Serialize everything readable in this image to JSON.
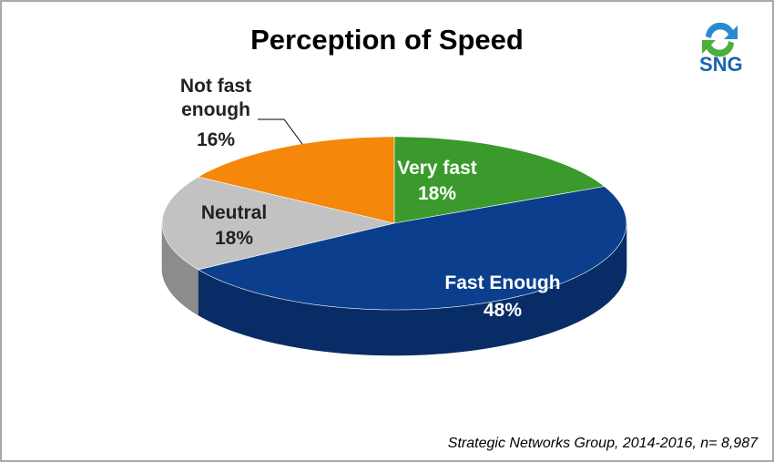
{
  "chart_data": {
    "type": "pie",
    "title": "Perception of Speed",
    "logo": "SNG",
    "source": "Strategic Networks Group, 2014-2016, n= 8,987",
    "categories": [
      "Very fast",
      "Fast Enough",
      "Neutral",
      "Not fast enough"
    ],
    "values": [
      18,
      48,
      18,
      16
    ],
    "value_labels": [
      "18%",
      "48%",
      "18%",
      "16%"
    ],
    "colors": [
      "#3a9a2b",
      "#0b3f8e",
      "#c2c2c2",
      "#f5870b"
    ]
  }
}
